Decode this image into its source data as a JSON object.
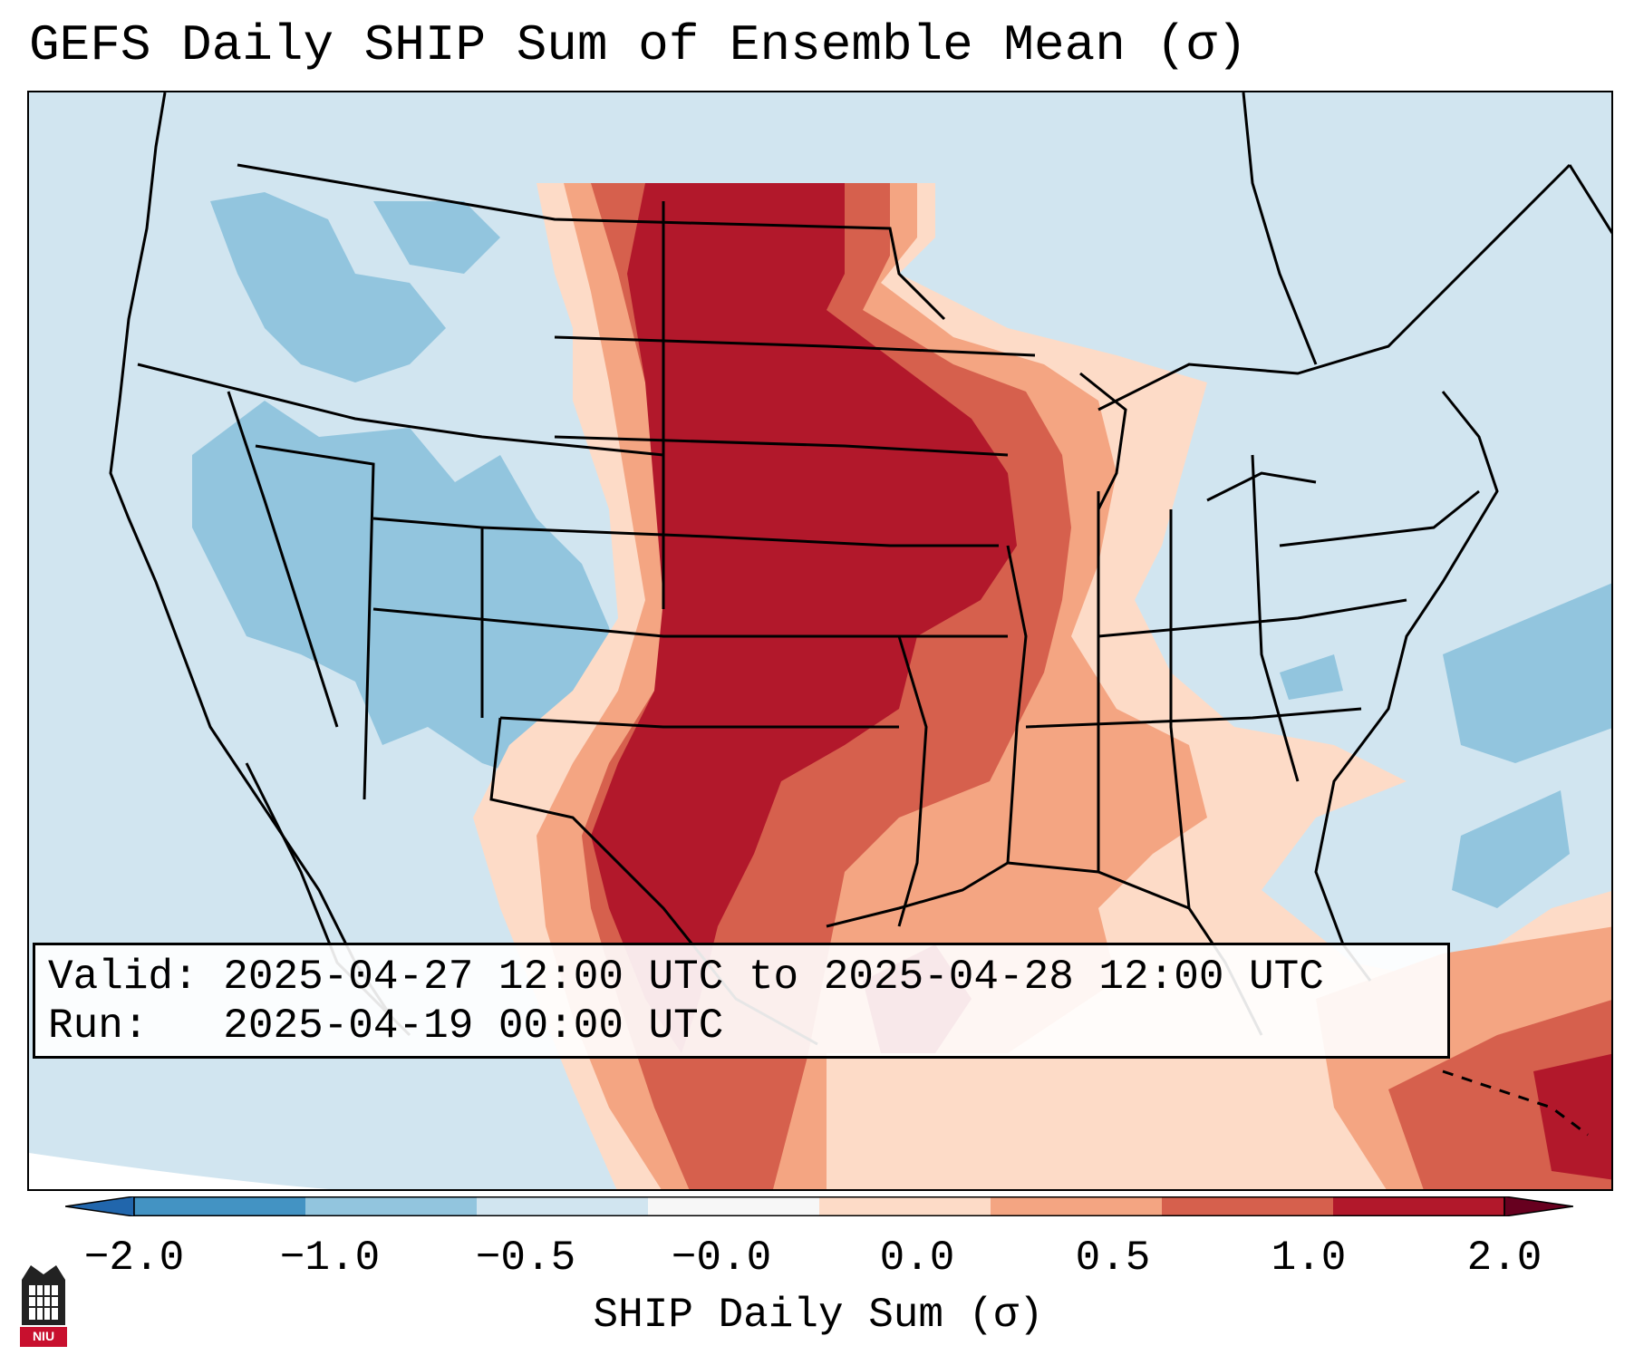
{
  "title": "GEFS Daily SHIP Sum of Ensemble Mean (σ)",
  "info": {
    "valid_label": "Valid:",
    "valid_value": "2025-04-27 12:00 UTC to 2025-04-28 12:00 UTC",
    "run_label": "Run:",
    "run_value": "2025-04-19 00:00 UTC"
  },
  "colorbar": {
    "label": "SHIP Daily Sum (σ)",
    "ticks": [
      "−2.0",
      "−1.0",
      "−0.5",
      "−0.0",
      "0.0",
      "0.5",
      "1.0",
      "2.0"
    ],
    "colors": [
      "#4393c3",
      "#92c5de",
      "#d1e5f0",
      "#f7f7f7",
      "#fddbc7",
      "#f4a582",
      "#d6604d",
      "#b2182b"
    ],
    "extend": "both"
  },
  "logo": {
    "text": "NIU",
    "color": "#c8102e"
  }
}
